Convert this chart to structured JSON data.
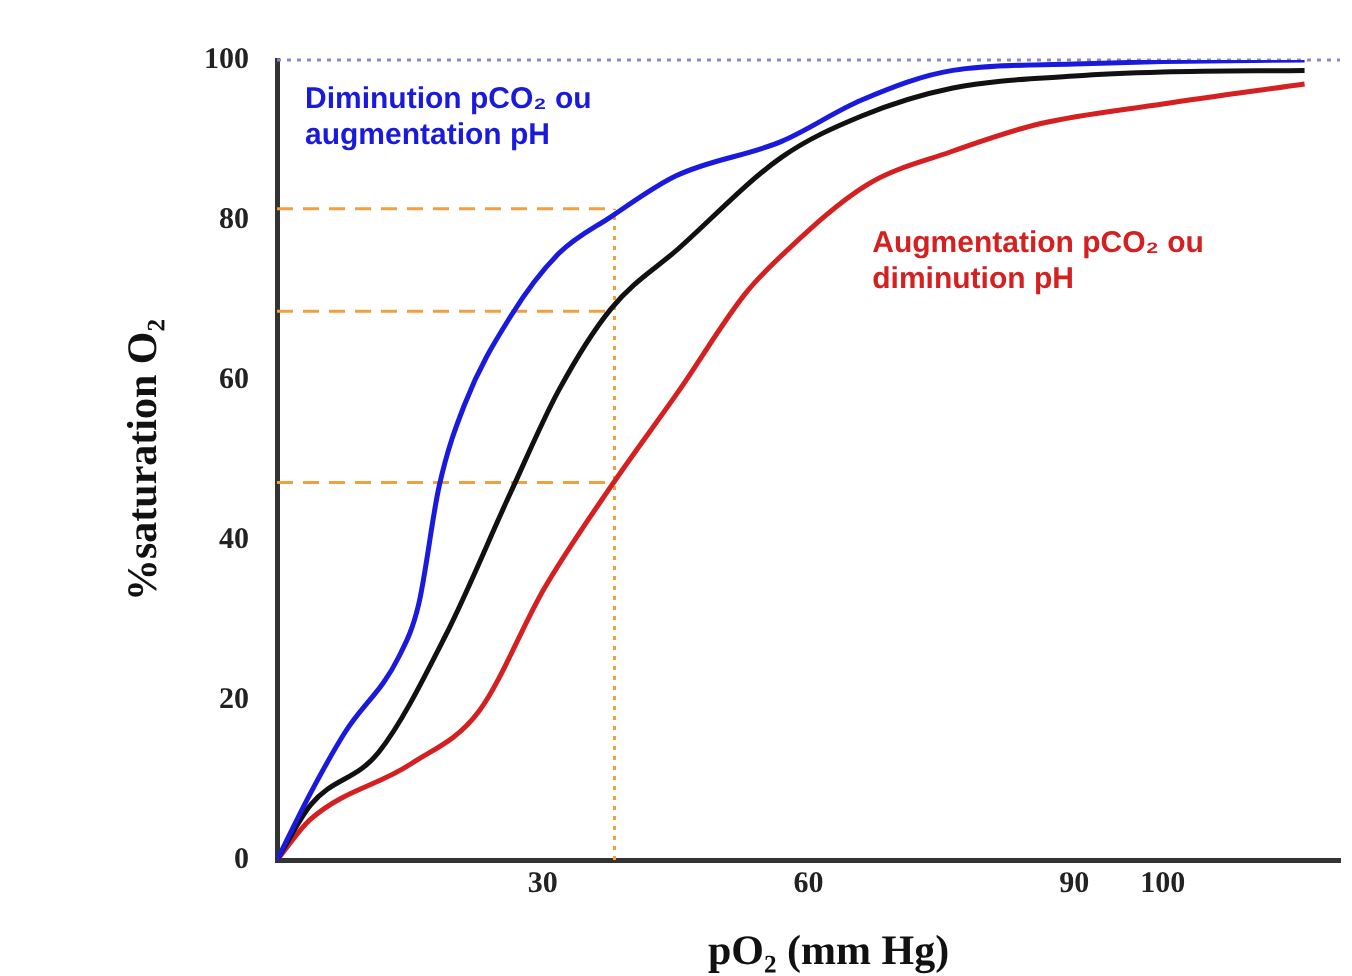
{
  "chart_data": {
    "type": "line",
    "xlabel": "pO₂ (mm Hg)",
    "ylabel": "%saturation O₂",
    "xlim": [
      0,
      120
    ],
    "xticks": [
      30,
      60,
      90,
      100
    ],
    "ylim": [
      0,
      100
    ],
    "yticks": [
      0,
      20,
      40,
      60,
      80,
      100
    ],
    "grid": false,
    "legend": false,
    "marker": "none",
    "line_style": "solid",
    "series": [
      {
        "name": "Diminution pCO₂ ou augmentation pH",
        "color": "#1a1adc",
        "x": [
          0,
          3.8,
          7.7,
          13.8,
          16,
          18.3,
          21.2,
          26.4,
          31.8,
          37.7,
          45,
          56.9,
          66,
          76.3,
          90,
          100,
          116
        ],
        "values": [
          0,
          8.4,
          16,
          25.5,
          32,
          46.7,
          57,
          68,
          75.8,
          80.4,
          85.5,
          89.8,
          95,
          98.7,
          99.5,
          99.8,
          100
        ]
      },
      {
        "color": "#111111",
        "x": [
          0,
          3.8,
          11.5,
          19,
          26.4,
          31.8,
          37.7,
          45.4,
          56.9,
          66,
          76.3,
          90,
          100,
          116
        ],
        "values": [
          0,
          6.9,
          13.5,
          28,
          46,
          58.7,
          68.9,
          76.5,
          87.8,
          93,
          96.5,
          98,
          98.5,
          98.7
        ]
      },
      {
        "name": "Augmentation pCO₂ ou diminution pH",
        "color": "#d42020",
        "x": [
          0,
          3.8,
          15.1,
          22.8,
          30.2,
          37.7,
          45.4,
          52.8,
          56.9,
          66.6,
          76,
          86,
          100,
          116
        ],
        "values": [
          0,
          5.1,
          12,
          18.6,
          34,
          46.7,
          58.7,
          70.7,
          75.5,
          84.4,
          88.5,
          92,
          94.5,
          97
        ]
      }
    ],
    "ref_lines": [
      {
        "axis": "y",
        "value": 100,
        "color": "#8888cc",
        "line_style": "dotted"
      },
      {
        "axis": "y",
        "value": 81.4,
        "color": "#f0a040",
        "line_style": "dashed"
      },
      {
        "axis": "y",
        "value": 68.6,
        "color": "#f0a040",
        "line_style": "dashed"
      },
      {
        "axis": "y",
        "value": 47.2,
        "color": "#f0a040",
        "line_style": "dashed"
      },
      {
        "axis": "x",
        "value": 38.1,
        "color": "#f0a040",
        "line_style": "dotted"
      }
    ]
  }
}
